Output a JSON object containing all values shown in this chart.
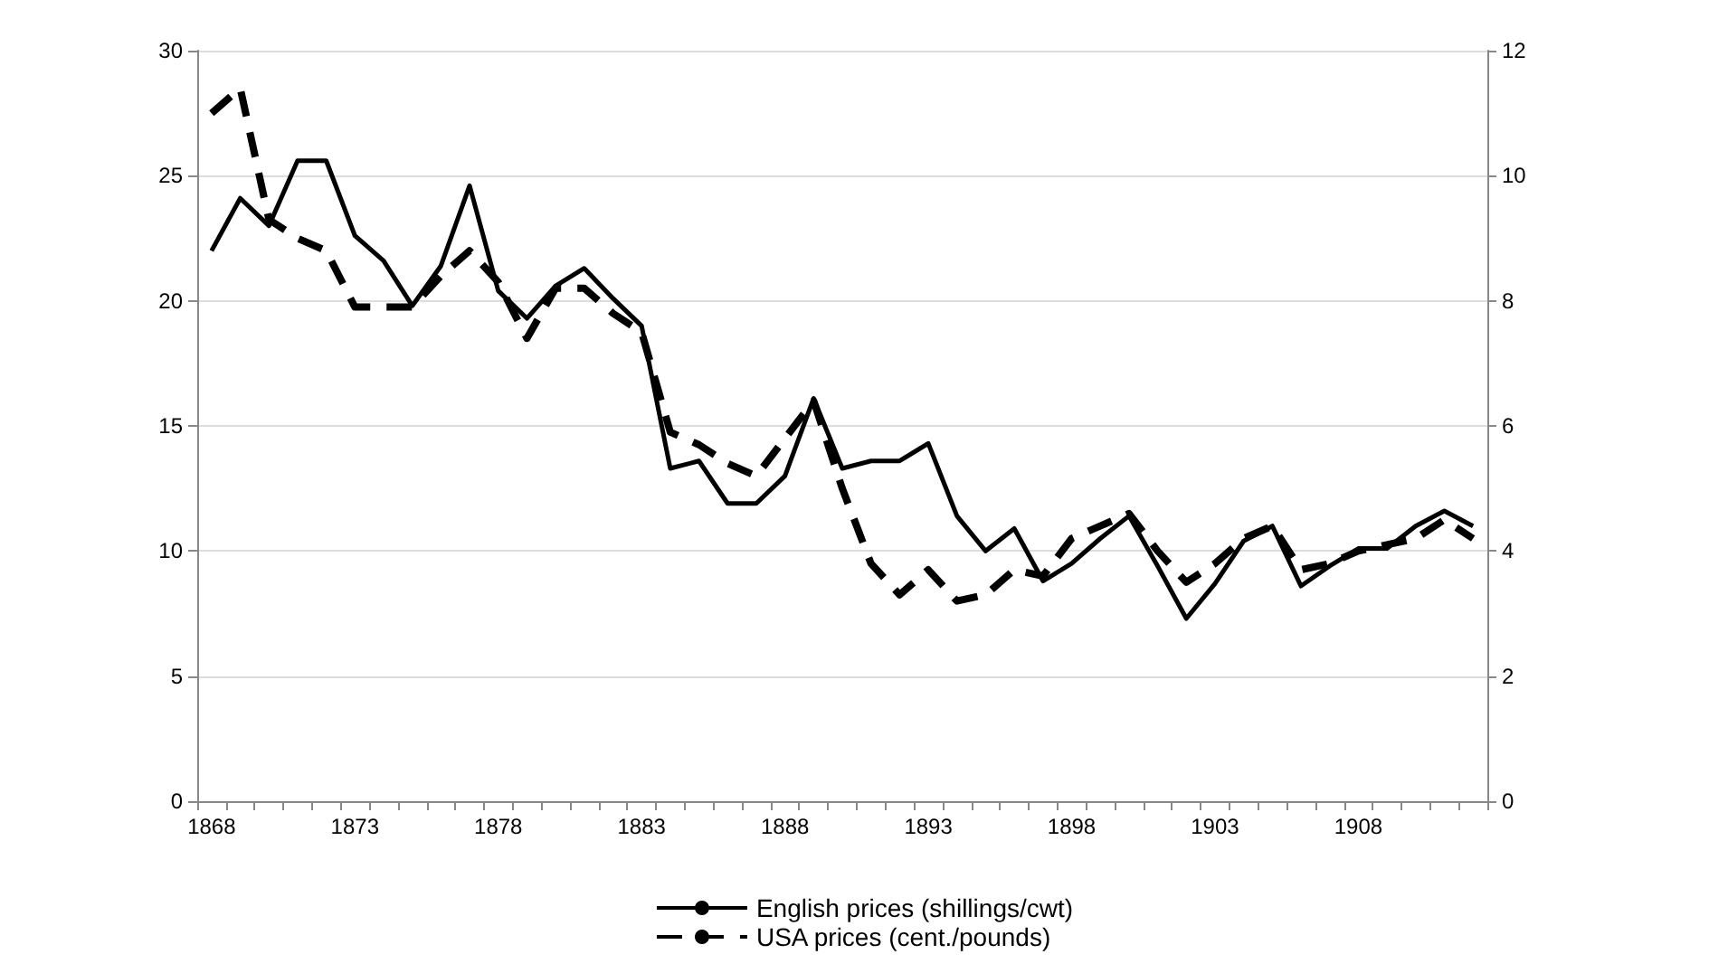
{
  "chart_data": {
    "type": "line",
    "categories": [
      "1868",
      null,
      null,
      null,
      null,
      "1873",
      null,
      null,
      null,
      null,
      "1878",
      null,
      null,
      null,
      null,
      "1883",
      null,
      null,
      null,
      null,
      "1888",
      null,
      null,
      null,
      null,
      "1893",
      null,
      null,
      null,
      null,
      "1898",
      null,
      null,
      null,
      null,
      "1903",
      null,
      null,
      null,
      null,
      "1908",
      null,
      null,
      null,
      null
    ],
    "series": [
      {
        "name": "English prices (shillings/cwt)",
        "color": "#000000",
        "line_style": "solid",
        "values": [
          22.0,
          24.1,
          23.0,
          25.6,
          25.6,
          22.6,
          21.6,
          19.8,
          21.4,
          24.6,
          20.4,
          19.3,
          20.6,
          21.3,
          20.1,
          19.0,
          13.3,
          13.6,
          11.9,
          11.9,
          13.0,
          16.1,
          13.3,
          13.6,
          13.6,
          14.3,
          11.4,
          10.0,
          10.9,
          8.8,
          9.5,
          10.5,
          11.4,
          9.4,
          7.3,
          8.7,
          10.4,
          11.0,
          8.6,
          9.4,
          10.1,
          10.1,
          11.0,
          11.6,
          11.0
        ]
      },
      {
        "name": "USA prices (cent./pounds)",
        "color": "#000000",
        "line_style": "dashed",
        "axis": "y2",
        "values": [
          11.0,
          11.4,
          9.3,
          9.0,
          8.8,
          7.9,
          7.9,
          7.9,
          8.4,
          8.8,
          8.3,
          7.4,
          8.2,
          8.2,
          7.8,
          7.5,
          5.9,
          5.7,
          5.4,
          5.2,
          5.8,
          6.4,
          5.0,
          3.8,
          3.3,
          3.7,
          3.2,
          3.3,
          3.7,
          3.6,
          4.2,
          4.4,
          4.6,
          4.0,
          3.5,
          3.8,
          4.2,
          4.4,
          3.7,
          3.8,
          4.0,
          4.1,
          4.2,
          4.5,
          4.2
        ]
      }
    ],
    "ylim": [
      0,
      30
    ],
    "yticks": [
      0,
      5,
      10,
      15,
      20,
      25,
      30
    ],
    "y2lim": [
      0,
      12
    ],
    "y2ticks": [
      0,
      2,
      4,
      6,
      8,
      10,
      12
    ],
    "grid": "y",
    "legend": "bottom",
    "marker": "none"
  }
}
